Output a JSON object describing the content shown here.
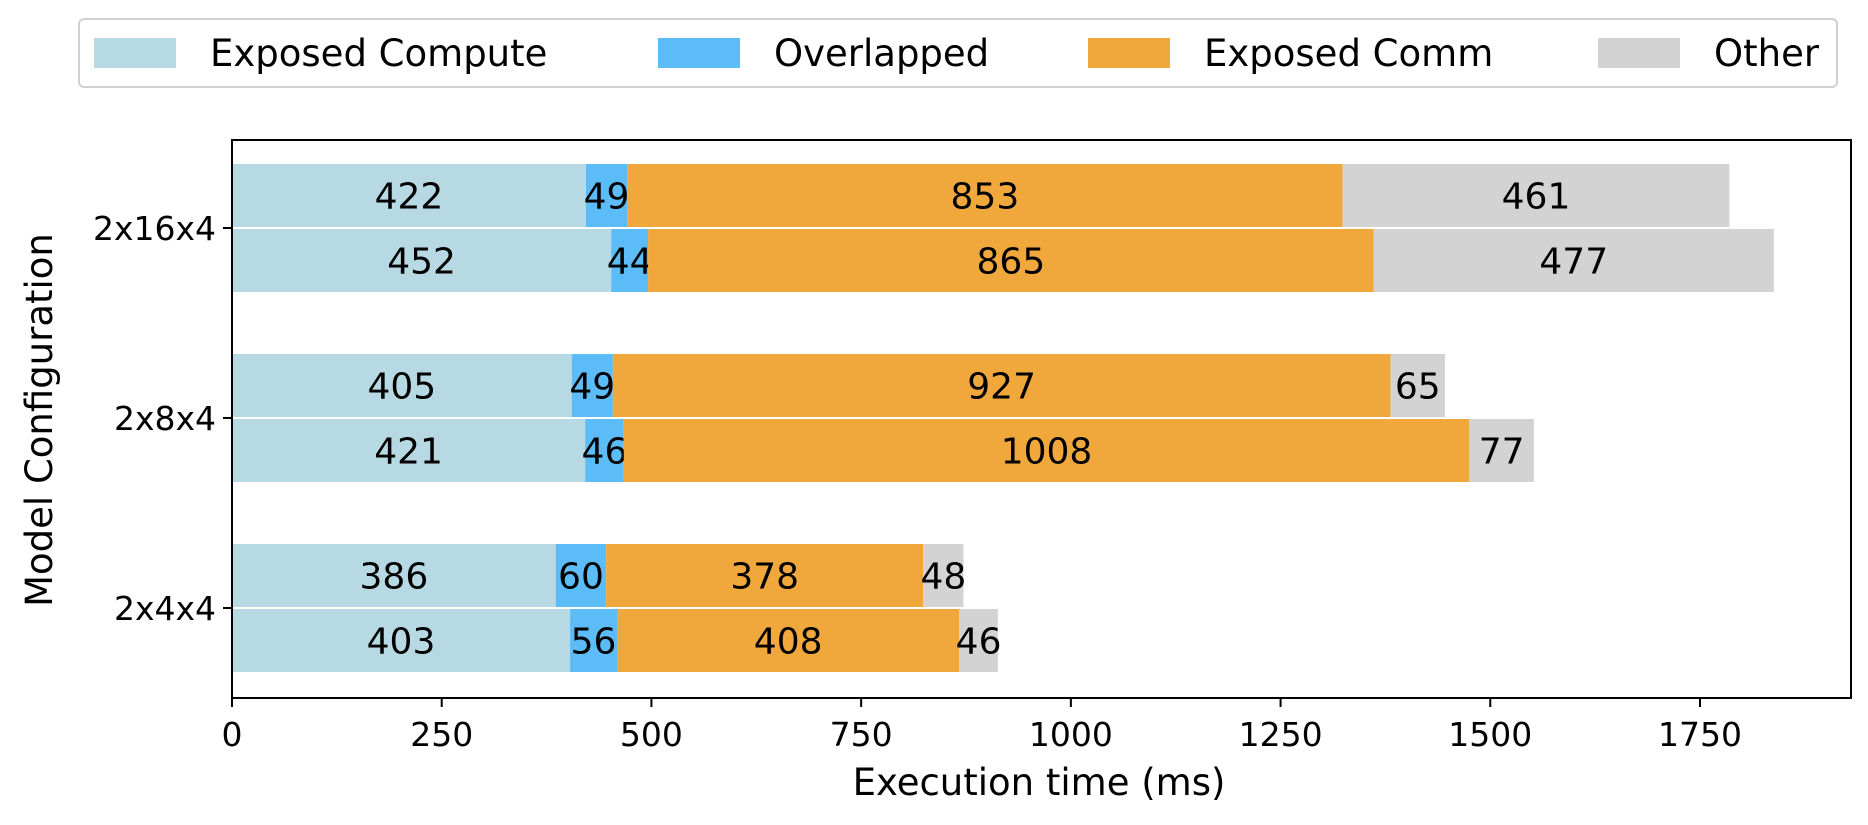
{
  "chart_data": {
    "type": "bar",
    "orientation": "horizontal",
    "stacked": true,
    "title": "",
    "xlabel": "Execution time (ms)",
    "ylabel": "Model Configuration",
    "xlim": [
      0,
      1930
    ],
    "x_ticks": [
      "0",
      "250",
      "500",
      "750",
      "1000",
      "1250",
      "1500",
      "1750"
    ],
    "categories": [
      "2x16x4",
      "2x8x4",
      "2x4x4"
    ],
    "bars_per_category": 2,
    "legend_position": "top",
    "grid": false,
    "series": [
      {
        "name": "Exposed Compute",
        "color": "#b7d9e4",
        "values": [
          [
            422,
            452
          ],
          [
            405,
            421
          ],
          [
            386,
            403
          ]
        ],
        "value_labels": [
          [
            "422",
            "452"
          ],
          [
            "405",
            "421"
          ],
          [
            "386",
            "403"
          ]
        ]
      },
      {
        "name": "Overlapped",
        "color": "#5bbcf7",
        "values": [
          [
            49,
            44
          ],
          [
            49,
            46
          ],
          [
            60,
            56
          ]
        ],
        "value_labels": [
          [
            "49",
            "44"
          ],
          [
            "49",
            "46"
          ],
          [
            "60",
            "56"
          ]
        ]
      },
      {
        "name": "Exposed Comm",
        "color": "#f0a83c",
        "values": [
          [
            853,
            865
          ],
          [
            927,
            1008
          ],
          [
            378,
            408
          ]
        ],
        "value_labels": [
          [
            "853",
            "865"
          ],
          [
            "927",
            "1008"
          ],
          [
            "378",
            "408"
          ]
        ]
      },
      {
        "name": "Other",
        "color": "#d3d3d3",
        "values": [
          [
            461,
            477
          ],
          [
            65,
            77
          ],
          [
            48,
            46
          ]
        ],
        "value_labels": [
          [
            "461",
            "477"
          ],
          [
            "65",
            "77"
          ],
          [
            "48",
            "46"
          ]
        ]
      }
    ]
  }
}
